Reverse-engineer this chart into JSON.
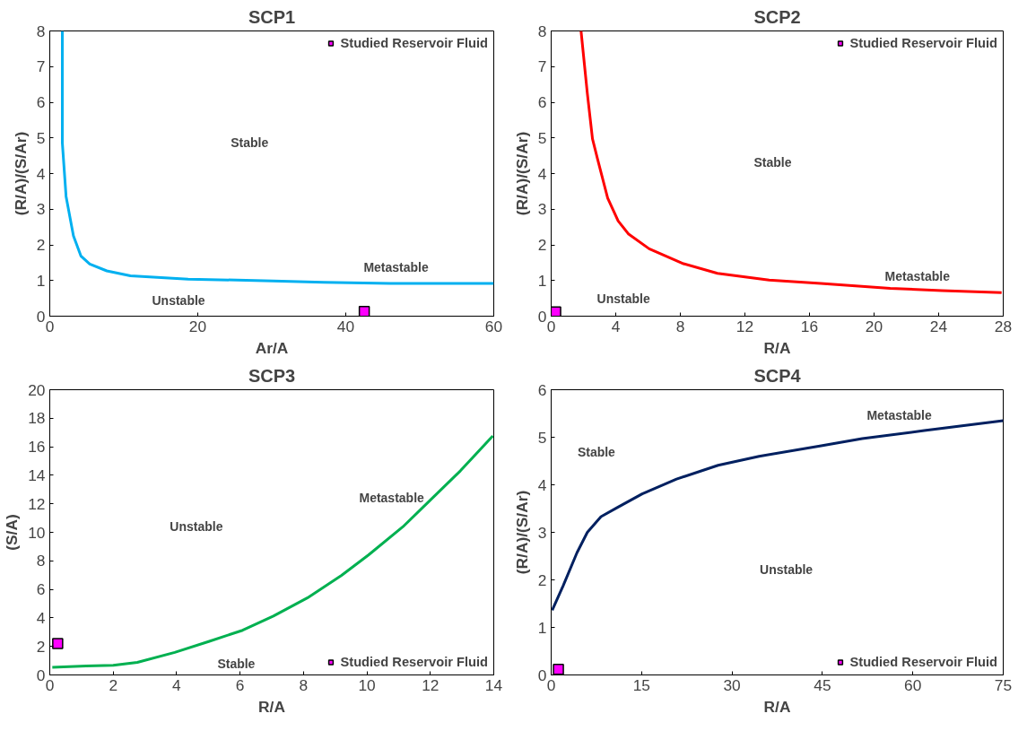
{
  "chart_data": [
    {
      "type": "line",
      "title": "SCP1",
      "xlabel": "Ar/A",
      "ylabel": "(R/A)/(S/Ar)",
      "xlim": [
        0,
        60
      ],
      "ylim": [
        0,
        8
      ],
      "xticks": [
        0,
        20,
        40,
        60
      ],
      "yticks": [
        0,
        1,
        2,
        3,
        4,
        5,
        6,
        7,
        8
      ],
      "grid": false,
      "legend": "top right",
      "series": [
        {
          "color": "#00b0f0",
          "x": [
            1.7,
            1.7,
            2.2,
            3.2,
            4.2,
            5.4,
            7.7,
            10.9,
            18.7,
            30.2,
            37,
            46,
            60
          ],
          "values": [
            8,
            4.85,
            3.36,
            2.25,
            1.69,
            1.46,
            1.27,
            1.13,
            1.04,
            0.99,
            0.95,
            0.92,
            0.92
          ]
        },
        {
          "type": "scatter",
          "name": "Studied Reservoir Fluid",
          "color": "#ff00ff",
          "marker": "square",
          "x": [
            42.5
          ],
          "values": [
            0.13
          ]
        }
      ],
      "annotations": [
        "Stable",
        "Metastable",
        "Unstable"
      ]
    },
    {
      "type": "line",
      "title": "SCP2",
      "xlabel": "R/A",
      "ylabel": "(R/A)/(S/Ar)",
      "xlim": [
        0,
        28
      ],
      "ylim": [
        0,
        8
      ],
      "xticks": [
        0,
        4,
        8,
        12,
        16,
        20,
        24,
        28
      ],
      "yticks": [
        0,
        1,
        2,
        3,
        4,
        5,
        6,
        7,
        8
      ],
      "grid": false,
      "legend": "top right",
      "series": [
        {
          "color": "#ff0000",
          "x": [
            1.85,
            2.24,
            2.56,
            2.87,
            3.5,
            4.15,
            4.8,
            6.07,
            8.2,
            10.3,
            13.5,
            16.7,
            21,
            24.2,
            27.9
          ],
          "values": [
            8,
            6.25,
            4.97,
            4.41,
            3.31,
            2.67,
            2.3,
            1.89,
            1.47,
            1.2,
            1.01,
            0.92,
            0.78,
            0.72,
            0.66
          ]
        },
        {
          "type": "scatter",
          "name": "Studied Reservoir Fluid",
          "color": "#ff00ff",
          "marker": "square",
          "x": [
            0.28
          ],
          "values": [
            0.12
          ]
        }
      ],
      "annotations": [
        "Stable",
        "Metastable",
        "Unstable"
      ]
    },
    {
      "type": "line",
      "title": "SCP3",
      "xlabel": "R/A",
      "ylabel": "(S/A)",
      "xlim": [
        0,
        14
      ],
      "ylim": [
        0,
        20
      ],
      "xticks": [
        0,
        2,
        4,
        6,
        8,
        10,
        12,
        14
      ],
      "yticks": [
        0,
        2,
        4,
        6,
        8,
        10,
        12,
        14,
        16,
        18,
        20
      ],
      "grid": false,
      "legend": "bottom right",
      "series": [
        {
          "color": "#00b050",
          "x": [
            0.08,
            1.15,
            2,
            2.76,
            3.94,
            5.01,
            6.08,
            7.05,
            8.12,
            9.2,
            10.05,
            11.13,
            11.99,
            12.95,
            13.97
          ],
          "values": [
            0.53,
            0.63,
            0.67,
            0.88,
            1.58,
            2.34,
            3.13,
            4.13,
            5.4,
            6.98,
            8.41,
            10.38,
            12.24,
            14.32,
            16.76
          ]
        },
        {
          "type": "scatter",
          "name": "Studied Reservoir Fluid",
          "color": "#ff00ff",
          "marker": "square",
          "x": [
            0.25
          ],
          "values": [
            2.2
          ]
        }
      ],
      "annotations": [
        "Unstable",
        "Metastable",
        "Stable"
      ]
    },
    {
      "type": "line",
      "title": "SCP4",
      "xlabel": "R/A",
      "ylabel": "(R/A)/(S/Ar)",
      "xlim": [
        0,
        75
      ],
      "ylim": [
        0,
        6
      ],
      "xticks": [
        0,
        15,
        30,
        45,
        60,
        75
      ],
      "yticks": [
        0,
        1,
        2,
        3,
        4,
        5,
        6
      ],
      "grid": false,
      "legend": "bottom right",
      "series": [
        {
          "color": "#002060",
          "x": [
            0.17,
            2,
            4.28,
            6,
            8.27,
            11.1,
            15.1,
            20.8,
            27.7,
            34.5,
            44.8,
            51.6,
            61.9,
            75
          ],
          "values": [
            1.36,
            1.88,
            2.57,
            3,
            3.33,
            3.53,
            3.81,
            4.12,
            4.41,
            4.6,
            4.82,
            4.97,
            5.14,
            5.35
          ]
        },
        {
          "type": "scatter",
          "name": "Studied Reservoir Fluid",
          "color": "#ff00ff",
          "marker": "square",
          "x": [
            1.2
          ],
          "values": [
            0.12
          ]
        }
      ],
      "annotations": [
        "Stable",
        "Metastable",
        "Unstable"
      ]
    }
  ]
}
